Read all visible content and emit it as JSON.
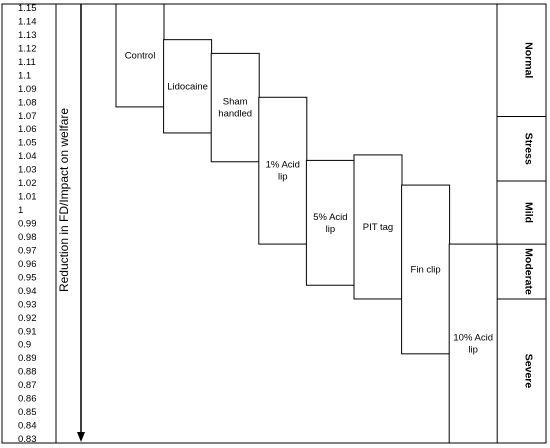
{
  "chart_data": {
    "type": "floating-bar",
    "ylabel": "Reduction in FD/Impact on welfare",
    "y_ticks": [
      "1.15",
      "1.14",
      "1.13",
      "1.12",
      "1.11",
      "1.1",
      "1.09",
      "1.08",
      "1.07",
      "1.06",
      "1.05",
      "1.04",
      "1.03",
      "1.02",
      "1.01",
      "1",
      "0.99",
      "0.98",
      "0.97",
      "0.96",
      "0.95",
      "0.94",
      "0.93",
      "0.92",
      "0.91",
      "0.9",
      "0.89",
      "0.88",
      "0.87",
      "0.86",
      "0.85",
      "0.84",
      "0.83"
    ],
    "ylim": [
      0.83,
      1.15
    ],
    "treatments": [
      {
        "label": "Control",
        "high": 1.15,
        "low": 1.075
      },
      {
        "label": "Lidocaine",
        "high": 1.124,
        "low": 1.056
      },
      {
        "label": "Sham\nhandled",
        "high": 1.114,
        "low": 1.035
      },
      {
        "label": "1% Acid\nlip",
        "high": 1.082,
        "low": 0.975
      },
      {
        "label": "5% Acid\nlip",
        "high": 1.036,
        "low": 0.945
      },
      {
        "label": "PIT tag",
        "high": 1.04,
        "low": 0.935
      },
      {
        "label": "Fin clip",
        "high": 1.018,
        "low": 0.895
      },
      {
        "label": "10% Acid\nlip",
        "high": 0.975,
        "low": 0.83
      }
    ],
    "welfare_categories": [
      {
        "label": "Normal",
        "high": 1.15,
        "low": 1.068
      },
      {
        "label": "Stress",
        "high": 1.068,
        "low": 1.021
      },
      {
        "label": "Mild",
        "high": 1.021,
        "low": 0.975
      },
      {
        "label": "Moderate",
        "high": 0.975,
        "low": 0.935
      },
      {
        "label": "Severe",
        "high": 0.935,
        "low": 0.83
      }
    ]
  }
}
